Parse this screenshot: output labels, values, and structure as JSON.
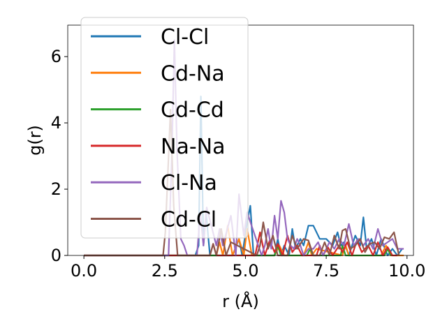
{
  "chart_data": {
    "type": "line",
    "title": "",
    "xlabel": "r (Å)",
    "ylabel": "g(r)",
    "xlim": [
      -0.5,
      10.2
    ],
    "ylim": [
      0,
      6.95
    ],
    "xticks": [
      0.0,
      2.5,
      5.0,
      7.5,
      10.0
    ],
    "xtick_labels": [
      "0.0",
      "2.5",
      "5.0",
      "7.5",
      "10.0"
    ],
    "yticks": [
      0,
      2,
      4,
      6
    ],
    "ytick_labels": [
      "0",
      "2",
      "4",
      "6"
    ],
    "grid": false,
    "legend": {
      "position": "upper-left",
      "alpha": 0.8
    },
    "series": [
      {
        "name": "Cl-Cl",
        "color": "#1f77b4",
        "x": [
          0,
          3.45,
          3.55,
          3.62,
          3.7,
          3.78,
          3.9,
          4.0,
          4.4,
          4.6,
          4.8,
          4.9,
          5.05,
          5.15,
          5.25,
          5.3,
          5.5,
          5.9,
          6.0,
          6.1,
          6.2,
          6.35,
          6.45,
          6.55,
          6.7,
          6.8,
          6.95,
          7.1,
          7.3,
          7.5,
          7.7,
          7.85,
          7.95,
          8.05,
          8.2,
          8.4,
          8.55,
          8.65,
          8.75,
          8.9,
          9.05,
          9.2,
          9.4,
          9.55,
          9.7,
          9.85
        ],
        "y": [
          0,
          0,
          0.3,
          4.8,
          0.3,
          1.3,
          0.0,
          0.0,
          0.0,
          0.0,
          0.5,
          0.0,
          1.0,
          1.5,
          0.0,
          0.0,
          0.0,
          0.0,
          0.5,
          0.0,
          0.3,
          0.0,
          0.8,
          0.2,
          0.5,
          0.3,
          0.9,
          0.9,
          0.5,
          0.5,
          0.3,
          0.7,
          0.3,
          0.4,
          0.0,
          0.6,
          0.3,
          1.15,
          0.2,
          0.5,
          0.0,
          0.5,
          0.0,
          0.2,
          0.0,
          0.2
        ]
      },
      {
        "name": "Cd-Na",
        "color": "#ff7f0e",
        "x": [
          0,
          4.1,
          4.2,
          4.3,
          4.45,
          4.6,
          4.8,
          4.95,
          5.05,
          5.2,
          5.9,
          6.05,
          6.2,
          6.8,
          6.95,
          7.05,
          7.2,
          8.0,
          8.1,
          8.2,
          9.2,
          9.35,
          9.5,
          9.9
        ],
        "y": [
          0,
          0,
          0.4,
          0.0,
          0.9,
          0.0,
          0.5,
          0.0,
          0.8,
          0.0,
          0.0,
          0.3,
          0.0,
          0.0,
          0.4,
          0.0,
          0.2,
          0.0,
          0.3,
          0.0,
          0.0,
          0.3,
          0.0,
          0.0
        ]
      },
      {
        "name": "Cd-Cd",
        "color": "#2ca02c",
        "x": [
          0,
          5.9,
          6.0,
          6.1,
          6.9,
          7.0,
          7.1,
          7.95,
          8.0,
          8.1,
          9.3,
          9.4,
          9.5
        ],
        "y": [
          0,
          0,
          0.3,
          0.0,
          0.0,
          0.2,
          0.0,
          0.0,
          0.3,
          0.0,
          0.0,
          0.2,
          0.0
        ]
      },
      {
        "name": "Na-Na",
        "color": "#d62728",
        "x": [
          0,
          3.9,
          4.0,
          4.1,
          5.3,
          5.45,
          5.6,
          5.75,
          5.9,
          6.0,
          6.15,
          6.3,
          6.45,
          6.6,
          6.75,
          7.2,
          7.3,
          7.4,
          7.55,
          7.7,
          7.9,
          8.0,
          8.15,
          8.3,
          8.45,
          8.6,
          8.8,
          8.95,
          9.1,
          9.25,
          9.4,
          9.55,
          9.7
        ],
        "y": [
          0,
          0,
          0.35,
          0.0,
          0.0,
          0.7,
          0.0,
          0.45,
          0.1,
          0.35,
          0.0,
          0.6,
          0.1,
          0.3,
          0.0,
          0.0,
          0.3,
          0.0,
          0.25,
          0.0,
          0.3,
          0.1,
          0.4,
          0.0,
          0.45,
          0.1,
          0.3,
          0.0,
          0.4,
          0.0,
          0.25,
          0.0,
          0.0
        ]
      },
      {
        "name": "Cl-Na",
        "color": "#9467bd",
        "x": [
          0,
          2.62,
          2.72,
          2.8,
          2.88,
          3.0,
          3.1,
          3.2,
          3.5,
          3.6,
          3.7,
          3.8,
          4.1,
          4.2,
          4.3,
          4.55,
          4.7,
          4.8,
          4.95,
          5.05,
          5.5,
          5.6,
          5.7,
          5.8,
          5.9,
          6.0,
          6.1,
          6.2,
          6.3,
          6.4,
          6.5,
          6.6,
          6.7,
          6.8,
          6.95,
          7.1,
          7.25,
          7.4,
          7.6,
          7.75,
          7.9,
          8.05,
          8.2,
          8.35,
          8.5,
          8.65,
          8.8,
          8.95,
          9.1,
          9.25,
          9.4,
          9.55,
          9.7,
          9.9
        ],
        "y": [
          0,
          0,
          3.0,
          6.5,
          3.2,
          0.5,
          0.3,
          0.0,
          0.0,
          1.3,
          0.3,
          1.45,
          0.3,
          0.8,
          0.3,
          1.2,
          0.0,
          1.85,
          0.6,
          1.3,
          0.0,
          0.3,
          0.8,
          0.2,
          1.2,
          0.5,
          1.65,
          1.3,
          0.5,
          0.3,
          0.2,
          0.5,
          0.3,
          0.0,
          0.2,
          0.2,
          0.4,
          0.0,
          0.4,
          0.2,
          0.5,
          0.3,
          0.95,
          0.3,
          0.5,
          0.3,
          0.5,
          0.2,
          0.8,
          0.3,
          0.4,
          0.5,
          0.2,
          0.2
        ]
      },
      {
        "name": "Cd-Cl",
        "color": "#8c564b",
        "x": [
          0,
          2.45,
          2.52,
          2.6,
          2.68,
          2.78,
          2.9,
          3.9,
          4.0,
          4.1,
          4.25,
          4.4,
          4.55,
          5.35,
          5.45,
          5.55,
          5.7,
          5.85,
          6.0,
          6.3,
          6.45,
          6.6,
          6.8,
          6.95,
          7.1,
          7.3,
          7.45,
          7.6,
          7.75,
          7.9,
          8.0,
          8.1,
          8.25,
          8.4,
          8.55,
          8.7,
          8.85,
          9.0,
          9.15,
          9.3,
          9.45,
          9.6,
          9.75
        ],
        "y": [
          0,
          0,
          0.7,
          2.5,
          4.4,
          1.5,
          0.0,
          0.0,
          0.35,
          0.0,
          0.8,
          0.0,
          0.4,
          0.0,
          0.3,
          1.0,
          0.2,
          0.6,
          0.0,
          0.0,
          0.6,
          0.2,
          0.5,
          0.45,
          0.0,
          0.0,
          0.4,
          0.0,
          0.6,
          0.2,
          0.75,
          0.8,
          0.2,
          0.3,
          0.5,
          0.1,
          0.35,
          0.4,
          0.2,
          0.55,
          0.5,
          0.7,
          0.0
        ]
      }
    ]
  }
}
